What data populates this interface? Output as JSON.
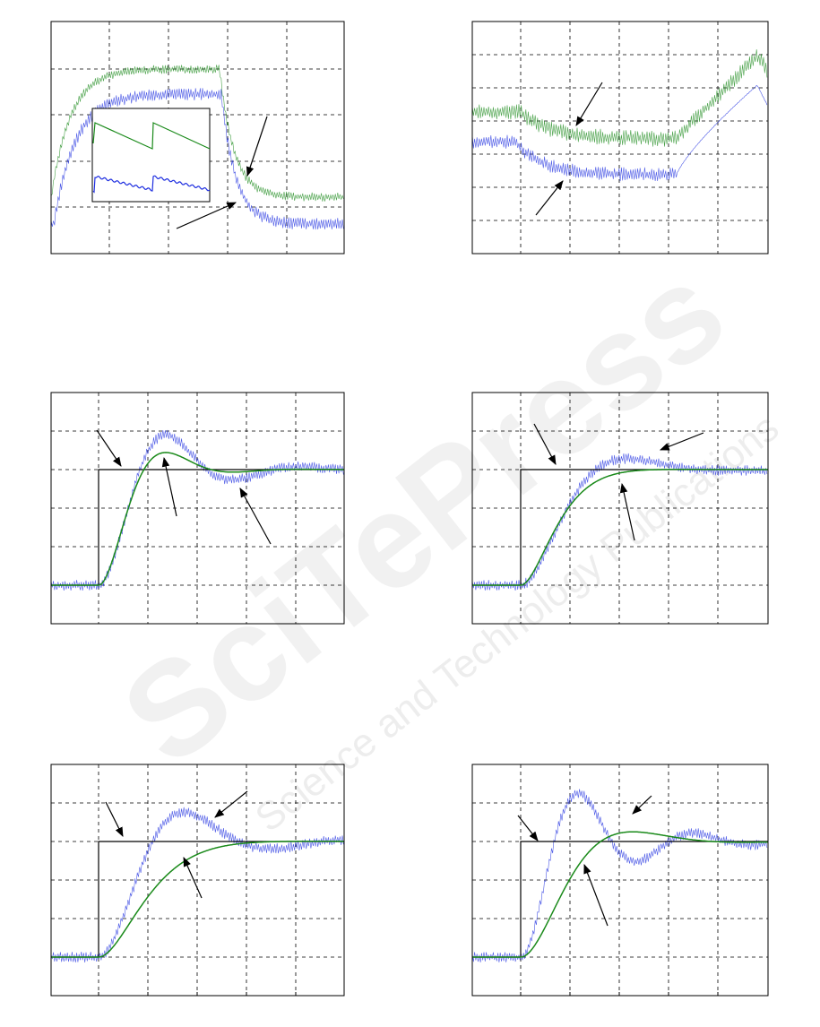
{
  "watermark": {
    "brand": "SciTePress",
    "tagline": "Science and Technology Publications"
  }
}
